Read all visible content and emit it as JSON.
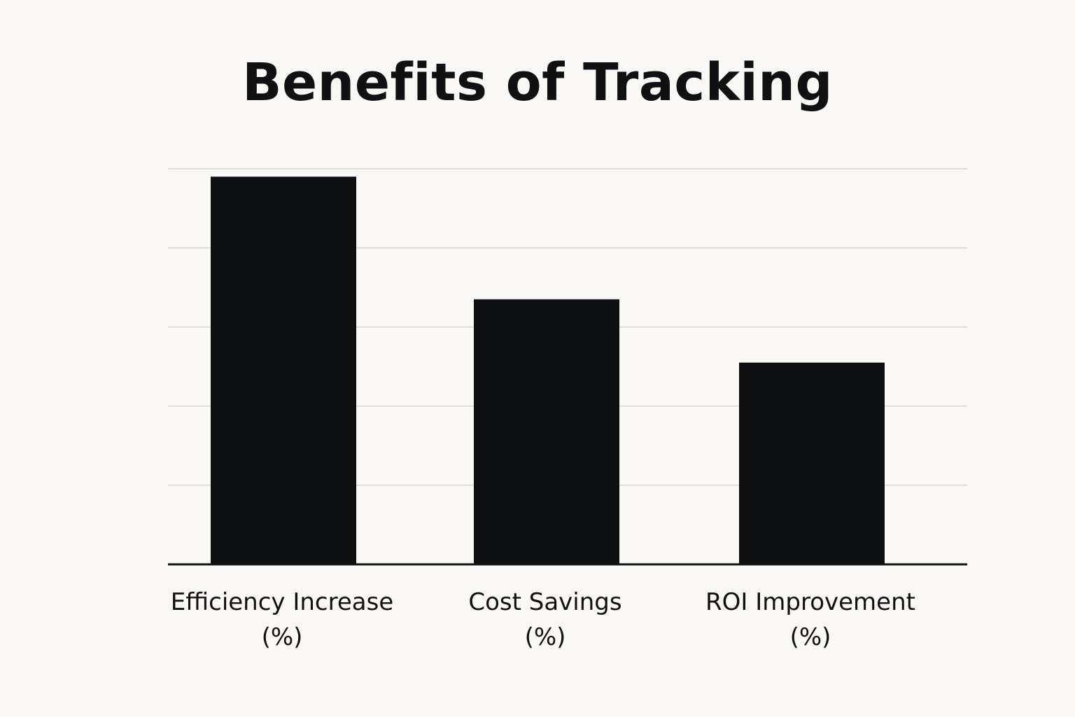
{
  "chart_data": {
    "type": "bar",
    "title": "Benefits of Tracking",
    "xlabel": "",
    "ylabel": "",
    "categories": [
      [
        "Efficiency Increase",
        "(%)"
      ],
      [
        "Cost Savings",
        "(%)"
      ],
      [
        "ROI Improvement",
        "(%)"
      ]
    ],
    "values": [
      98,
      67,
      51
    ],
    "ylim": [
      0,
      100
    ],
    "yticks": [
      0,
      20,
      40,
      60,
      80,
      100
    ],
    "grid": true,
    "bar_color": "#0e1012",
    "background": "#faf8f4"
  }
}
